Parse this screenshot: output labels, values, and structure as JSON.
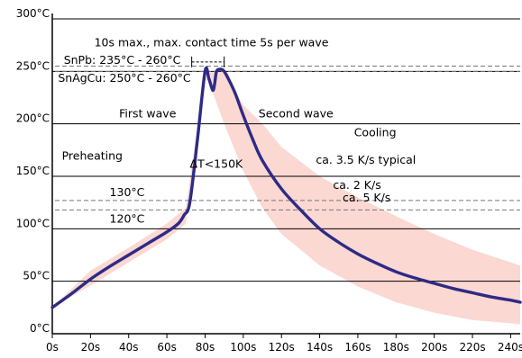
{
  "chart_data": {
    "type": "line",
    "title": "",
    "xlabel": "",
    "ylabel": "",
    "xlim": [
      0,
      245
    ],
    "ylim": [
      0,
      300
    ],
    "grid": "horizontal",
    "x_ticks": [
      0,
      20,
      40,
      60,
      80,
      100,
      120,
      140,
      160,
      180,
      200,
      220,
      240
    ],
    "x_tick_labels": [
      "0s",
      "20s",
      "40s",
      "60s",
      "80s",
      "100s",
      "120s",
      "140s",
      "160s",
      "180s",
      "200s",
      "220s",
      "240s"
    ],
    "y_ticks": [
      0,
      50,
      100,
      150,
      200,
      250,
      300
    ],
    "y_tick_labels": [
      "0°C",
      "50°C",
      "100°C",
      "150°C",
      "200°C",
      "250°C",
      "300°C"
    ],
    "reference_lines": [
      {
        "y": 255,
        "style": "dashed"
      },
      {
        "y": 250,
        "style": "dashed"
      },
      {
        "y": 127,
        "style": "dashed"
      },
      {
        "y": 118,
        "style": "dashed"
      }
    ],
    "colors": {
      "curve": "#2e2a86",
      "band": "#fbd8d2",
      "grid": "#000000",
      "reference": "#777777"
    },
    "series": [
      {
        "x": [
          0,
          10,
          20,
          30,
          40,
          50,
          60,
          66,
          69,
          72,
          76,
          80,
          82,
          84,
          85,
          86,
          88,
          90,
          93,
          96,
          100,
          105,
          110,
          120,
          130,
          140,
          150,
          160,
          170,
          180,
          190,
          200,
          210,
          220,
          230,
          240,
          245
        ],
        "y": [
          25,
          38,
          52,
          64,
          75,
          86,
          97,
          105,
          113,
          125,
          185,
          250,
          243,
          232,
          238,
          250,
          252,
          250,
          240,
          228,
          208,
          185,
          165,
          138,
          118,
          100,
          87,
          76,
          67,
          59,
          53,
          48,
          43,
          39,
          35,
          32,
          30
        ]
      }
    ],
    "bands": [
      {
        "x": [
          0,
          20,
          40,
          60,
          70,
          80,
          90,
          100,
          110,
          120,
          140,
          160,
          180,
          200,
          220,
          240,
          245
        ],
        "lower": [
          25,
          46,
          68,
          90,
          105,
          250,
          200,
          155,
          120,
          95,
          65,
          45,
          30,
          20,
          13,
          10,
          9
        ],
        "upper": [
          25,
          60,
          82,
          105,
          120,
          250,
          250,
          218,
          200,
          178,
          150,
          130,
          112,
          95,
          80,
          68,
          65
        ]
      }
    ],
    "annotations": [
      {
        "text": "10s max., max. contact time 5s per wave",
        "x": 22,
        "y": 274
      },
      {
        "text": "SnPb: 235°C - 260°C",
        "x": 6,
        "y": 257
      },
      {
        "text": "SnAgCu: 250°C - 260°C",
        "x": 3,
        "y": 240
      },
      {
        "text": "First wave",
        "x": 35,
        "y": 206
      },
      {
        "text": "Second wave",
        "x": 108,
        "y": 206
      },
      {
        "text": "Cooling",
        "x": 158,
        "y": 188
      },
      {
        "text": "Preheating",
        "x": 5,
        "y": 166
      },
      {
        "text": "ΔT<150K",
        "x": 72,
        "y": 158
      },
      {
        "text": "ca. 3.5 K/s typical",
        "x": 138,
        "y": 162
      },
      {
        "text": "ca. 2 K/s",
        "x": 147,
        "y": 138
      },
      {
        "text": "ca. 5 K/s",
        "x": 152,
        "y": 126
      },
      {
        "text": "130°C",
        "x": 30,
        "y": 131
      },
      {
        "text": "120°C",
        "x": 30,
        "y": 106
      }
    ],
    "contact_time_bracket": {
      "x_start": 73,
      "x_end": 90,
      "y": 259
    }
  }
}
